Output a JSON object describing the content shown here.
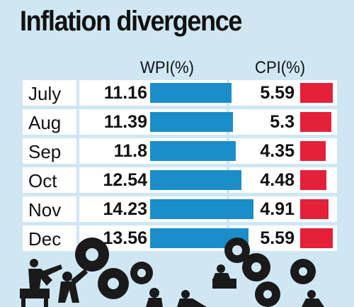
{
  "chart_data": {
    "type": "table",
    "title": "Inflation divergence",
    "columns": [
      "WPI(%)",
      "CPI(%)"
    ],
    "categories": [
      "July",
      "Aug",
      "Sep",
      "Oct",
      "Nov",
      "Dec"
    ],
    "series": [
      {
        "name": "WPI(%)",
        "values": [
          "11.16",
          "11.39",
          "11.8",
          "12.54",
          "14.23",
          "13.56"
        ],
        "color": "#1a8ec8"
      },
      {
        "name": "CPI(%)",
        "values": [
          "5.59",
          "5.3",
          "4.35",
          "4.48",
          "4.91",
          "5.59"
        ],
        "color": "#e5203a"
      }
    ]
  },
  "icons": [
    "gear-workers-illustration"
  ],
  "colors": {
    "background": "#cfe7f3",
    "wpi_bar": "#1a8ec8",
    "cpi_bar": "#e5203a",
    "text": "#111111"
  }
}
